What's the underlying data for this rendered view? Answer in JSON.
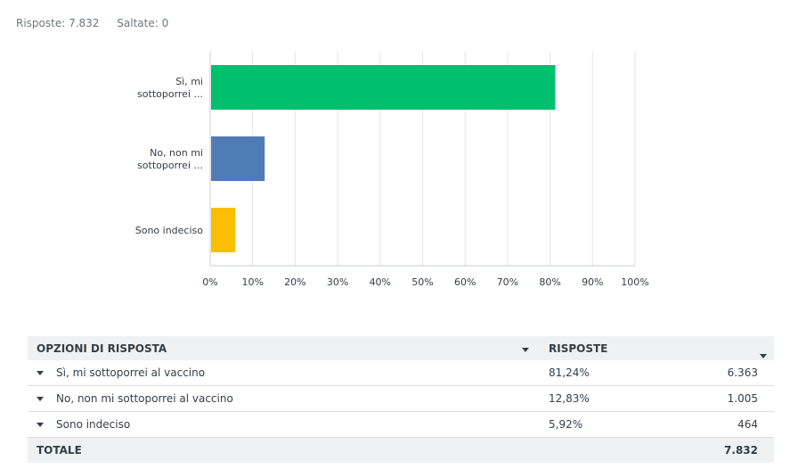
{
  "summary": {
    "responses": "Risposte: 7.832",
    "skipped": "Saltate: 0"
  },
  "chart_data": {
    "type": "bar",
    "orientation": "horizontal",
    "categories": [
      "Sì, mi sottoporrei ...",
      "No, non mi sottoporrei ...",
      "Sono indeciso"
    ],
    "category_lines": [
      [
        "Sì, mi",
        "sottoporrei ..."
      ],
      [
        "No, non mi",
        "sottoporrei ..."
      ],
      [
        "Sono indeciso"
      ]
    ],
    "values": [
      81.24,
      12.83,
      5.92
    ],
    "colors": [
      "#00bf6f",
      "#507cb6",
      "#f9be00"
    ],
    "xlim": [
      0,
      100
    ],
    "xticks": [
      "0%",
      "10%",
      "20%",
      "30%",
      "40%",
      "50%",
      "60%",
      "70%",
      "80%",
      "90%",
      "100%"
    ],
    "grid": true
  },
  "table": {
    "headers": {
      "option": "OPZIONI DI RISPOSTA",
      "responses": "RISPOSTE"
    },
    "rows": [
      {
        "label": "Sì, mi sottoporrei al vaccino",
        "percent": "81,24%",
        "count": "6.363"
      },
      {
        "label": "No, non mi sottoporrei al vaccino",
        "percent": "12,83%",
        "count": "1.005"
      },
      {
        "label": "Sono indeciso",
        "percent": "5,92%",
        "count": "464"
      }
    ],
    "total": {
      "label": "TOTALE",
      "count": "7.832"
    }
  }
}
